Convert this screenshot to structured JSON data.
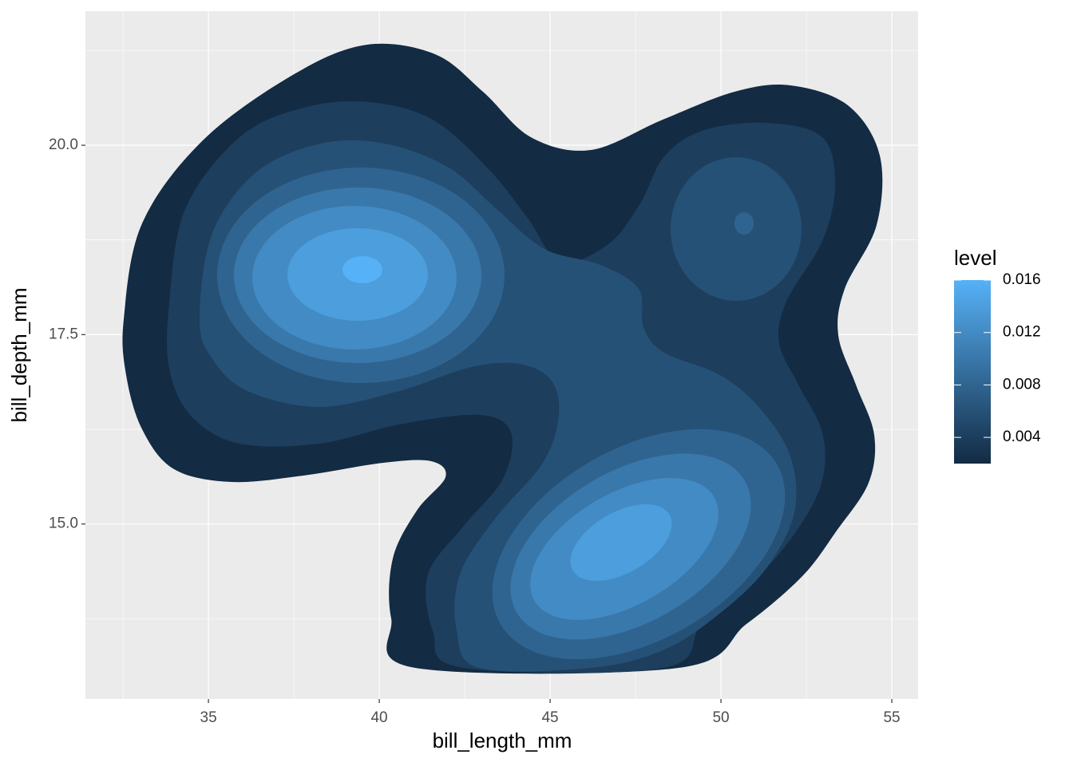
{
  "chart_data": {
    "type": "density2d_filled",
    "x_label": "bill_length_mm",
    "y_label": "bill_depth_mm",
    "xlim": [
      31.4,
      55.77
    ],
    "xticks": [
      35,
      40,
      45,
      50,
      55
    ],
    "ylim": [
      12.69,
      21.77
    ],
    "yticks": [
      {
        "value": 15,
        "label": "15.0"
      },
      {
        "value": 17.5,
        "label": "17.5"
      },
      {
        "value": 20,
        "label": "20.0"
      }
    ],
    "grid": true,
    "legend_title": "level",
    "levels": [
      0.002,
      0.004,
      0.006,
      0.008,
      0.01,
      0.012,
      0.014,
      0.016
    ],
    "clim": [
      0.002,
      0.016
    ],
    "legend_ticks": [
      0.004,
      0.008,
      0.012,
      0.016
    ],
    "colors": [
      "#132B43",
      "#56B1F7"
    ]
  }
}
